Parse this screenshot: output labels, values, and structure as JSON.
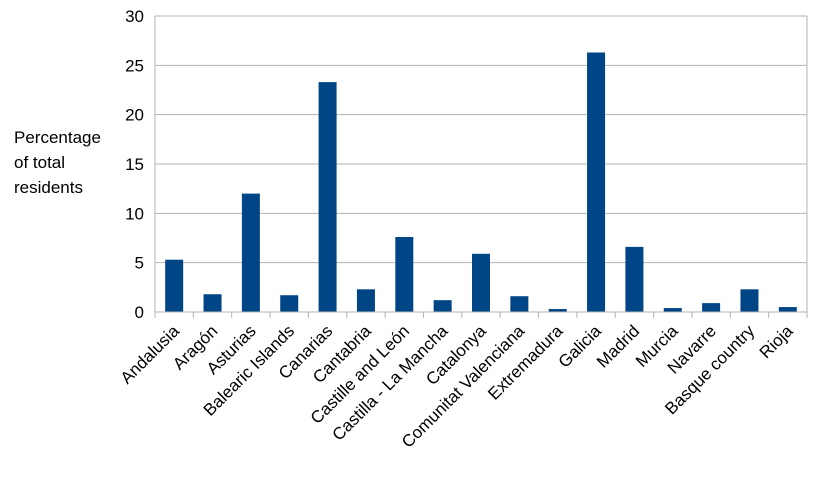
{
  "chart_data": {
    "type": "bar",
    "title": "",
    "xlabel": "",
    "ylabel_lines": [
      "Percentage",
      "of total",
      "residents"
    ],
    "ylim": [
      0,
      30
    ],
    "yticks": [
      0,
      5,
      10,
      15,
      20,
      25,
      30
    ],
    "grid": true,
    "legend": "none",
    "bar_color": "#004586",
    "categories": [
      "Andalusia",
      "Aragón",
      "Asturias",
      "Balearic Islands",
      "Canarias",
      "Cantabria",
      "Castille and León",
      "Castilla - La Mancha",
      "Catalonya",
      "Comunitat Valenciana",
      "Extremadura",
      "Galicia",
      "Madrid",
      "Murcia",
      "Navarre",
      "Basque country",
      "Rioja"
    ],
    "values": [
      5.3,
      1.8,
      12.0,
      1.7,
      23.3,
      2.3,
      7.6,
      1.2,
      5.9,
      1.6,
      0.3,
      26.3,
      6.6,
      0.4,
      0.9,
      2.3,
      0.5
    ]
  }
}
